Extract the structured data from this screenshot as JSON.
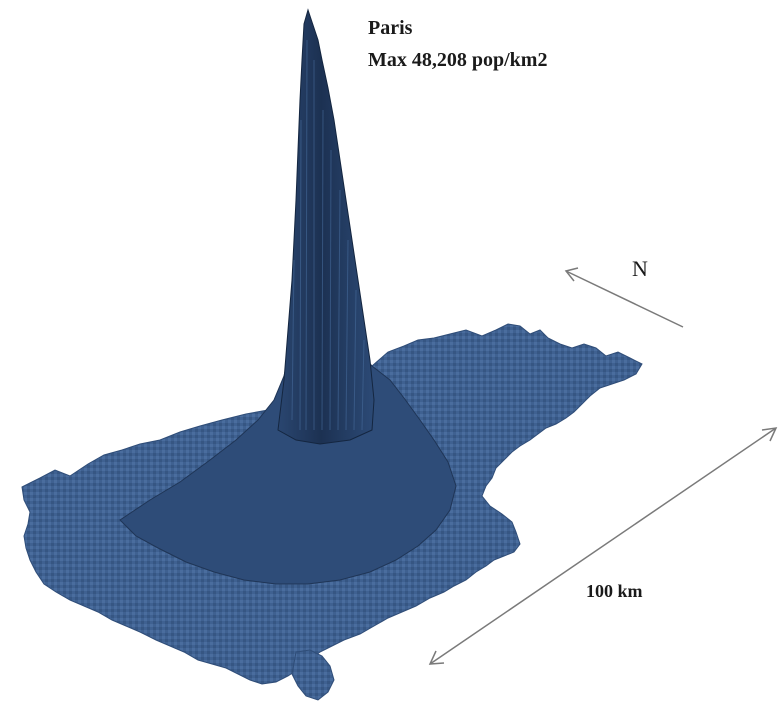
{
  "title": {
    "city": "Paris",
    "max": "Max 48,208 pop/km2"
  },
  "north_arrow": {
    "label": "N",
    "icon": "north-arrow-icon"
  },
  "scale_bar": {
    "label": "100 km",
    "icon": "double-arrow-icon"
  },
  "colors": {
    "terrain": "#3d5f8c",
    "terrain_dark": "#1f3556",
    "terrain_light": "#5277a8",
    "arrow": "#7a7a7a",
    "background": "#ffffff"
  }
}
